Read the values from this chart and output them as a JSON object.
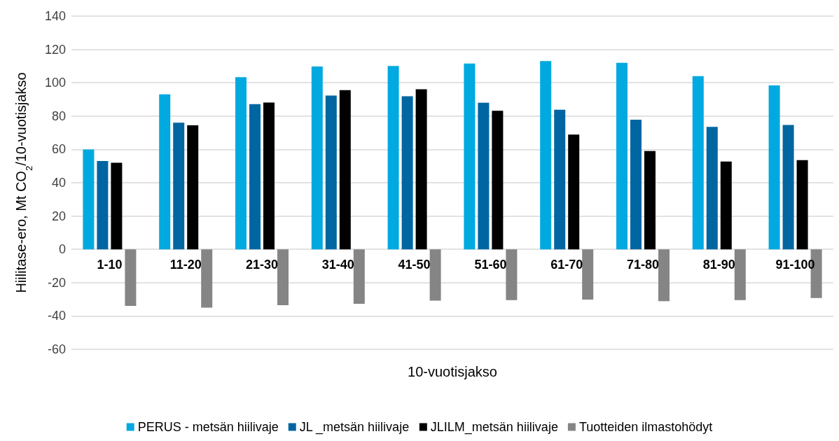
{
  "chart_data": {
    "type": "bar",
    "xlabel": "10-vuotisjakso",
    "ylabel": "Hiilitase-ero, Mt CO$_{2}$/10-vuotisjakso",
    "categories": [
      "1-10",
      "11-20",
      "21-30",
      "31-40",
      "41-50",
      "51-60",
      "61-70",
      "71-80",
      "81-90",
      "91-100"
    ],
    "series": [
      {
        "name": "PERUS - metsän hiilivaje",
        "color": "#00a9e0",
        "values": [
          60,
          93,
          103.3,
          109.8,
          110.1,
          111.5,
          113,
          112,
          104,
          98.4
        ]
      },
      {
        "name": "JL _metsän hiilivaje",
        "color": "#0066a1",
        "values": [
          53,
          76,
          87.2,
          92.3,
          91.9,
          88,
          83.8,
          77.8,
          73.5,
          74.7
        ]
      },
      {
        "name": "JLILM_metsän hiilivaje",
        "color": "#000000",
        "values": [
          52,
          74.5,
          88.1,
          95.6,
          96.1,
          83.2,
          68.9,
          59,
          52.7,
          53.6
        ]
      },
      {
        "name": "Tuotteiden ilmastohödyt",
        "color": "#858585",
        "values": [
          -33.9,
          -35,
          -33.5,
          -32.7,
          -30.8,
          -30.5,
          -30.2,
          -31.1,
          -30.5,
          -29.2
        ]
      }
    ],
    "ylim": [
      -60,
      140
    ],
    "yticks": [
      -60,
      -40,
      -20,
      0,
      20,
      40,
      60,
      80,
      100,
      120,
      140
    ],
    "grid": "y",
    "legend": "bottom"
  }
}
